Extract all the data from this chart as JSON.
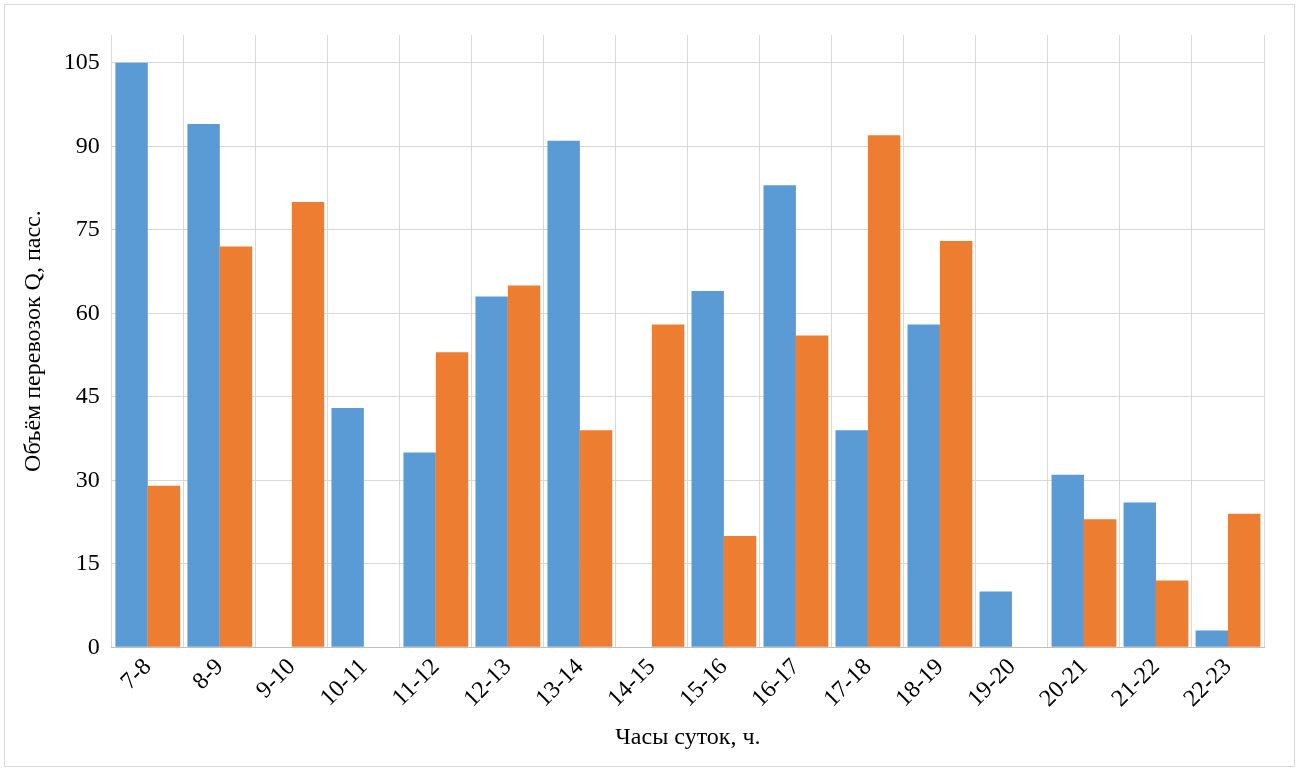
{
  "chart_data": {
    "type": "bar",
    "xlabel": "Часы суток, ч.",
    "ylabel": "Объём перевозок Q, пасс.",
    "categories": [
      "7-8",
      "8-9",
      "9-10",
      "10-11",
      "11-12",
      "12-13",
      "13-14",
      "14-15",
      "15-16",
      "16-17",
      "17-18",
      "18-19",
      "19-20",
      "20-21",
      "21-22",
      "22-23"
    ],
    "series": [
      {
        "color": "#5b9bd5",
        "values": [
          105,
          94,
          0,
          43,
          35,
          63,
          91,
          0,
          64,
          83,
          39,
          58,
          10,
          31,
          26,
          3
        ]
      },
      {
        "color": "#ed7d31",
        "values": [
          29,
          72,
          80,
          0,
          53,
          65,
          39,
          58,
          20,
          56,
          92,
          73,
          0,
          23,
          12,
          24
        ]
      }
    ],
    "ylim": [
      0,
      110
    ],
    "yticks": [
      0,
      15,
      30,
      45,
      60,
      75,
      90,
      105
    ],
    "grid": true,
    "legend": false
  }
}
